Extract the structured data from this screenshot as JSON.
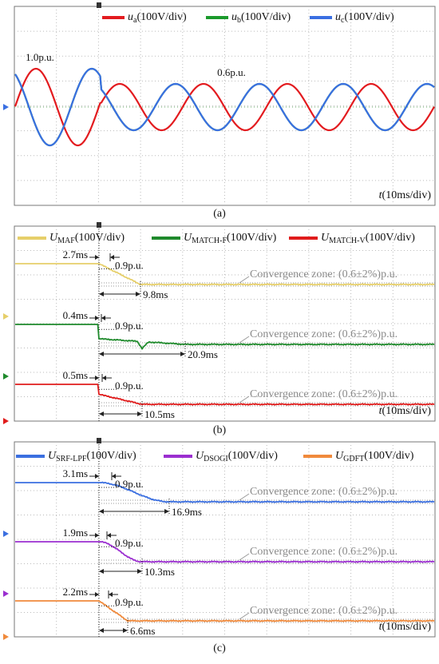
{
  "panels": [
    {
      "label": "(a)",
      "legend": [
        {
          "symbol": "u",
          "sub": "a",
          "unit": "(100V/div)",
          "color": "#e31b1f"
        },
        {
          "symbol": "u",
          "sub": "b",
          "unit": "(100V/div)",
          "color": "#1b9a2c"
        },
        {
          "symbol": "u",
          "sub": "c",
          "unit": "(100V/div)",
          "color": "#3a6fe2"
        }
      ],
      "annotations": [
        "1.0p.u.",
        "0.6p.u."
      ],
      "time": {
        "symbol": "t",
        "unit": "(10ms/div)"
      }
    },
    {
      "label": "(b)",
      "traces": [
        {
          "symbol": "U",
          "sub": "MAF",
          "unit": "(100V/div)",
          "color": "#e6cf6a",
          "delay": "2.7ms",
          "dip": "0.9p.u.",
          "settle": "9.8ms",
          "zone": "Convergence zone: (0.6±2%)p.u."
        },
        {
          "symbol": "U",
          "sub": "MATCH-F",
          "unit": "(100V/div)",
          "color": "#1f8a2c",
          "delay": "0.4ms",
          "dip": "0.9p.u.",
          "settle": "20.9ms",
          "zone": "Convergence zone: (0.6±2%)p.u."
        },
        {
          "symbol": "U",
          "sub": "MATCH-V",
          "unit": "(100V/div)",
          "color": "#e01c1c",
          "delay": "0.5ms",
          "dip": "0.9p.u.",
          "settle": "10.5ms",
          "zone": "Convergence zone: (0.6±2%)p.u."
        }
      ],
      "time": {
        "symbol": "t",
        "unit": "(10ms/div)"
      }
    },
    {
      "label": "(c)",
      "traces": [
        {
          "symbol": "U",
          "sub": "SRF-LPF",
          "unit": "(100V/div)",
          "color": "#3b6fe0",
          "delay": "3.1ms",
          "dip": "0.9p.u.",
          "settle": "16.9ms",
          "zone": "Convergence zone: (0.6±2%)p.u."
        },
        {
          "symbol": "U",
          "sub": "DSOGI",
          "unit": "(100V/div)",
          "color": "#9b2fd0",
          "delay": "1.9ms",
          "dip": "0.9p.u.",
          "settle": "10.3ms",
          "zone": "Convergence zone: (0.6±2%)p.u."
        },
        {
          "symbol": "U",
          "sub": "GDFT",
          "unit": "(100V/div)",
          "color": "#f08a3c",
          "delay": "2.2ms",
          "dip": "0.9p.u.",
          "settle": "6.6ms",
          "zone": "Convergence zone: (0.6±2%)p.u."
        }
      ],
      "time": {
        "symbol": "t",
        "unit": "(10ms/div)"
      }
    }
  ]
}
